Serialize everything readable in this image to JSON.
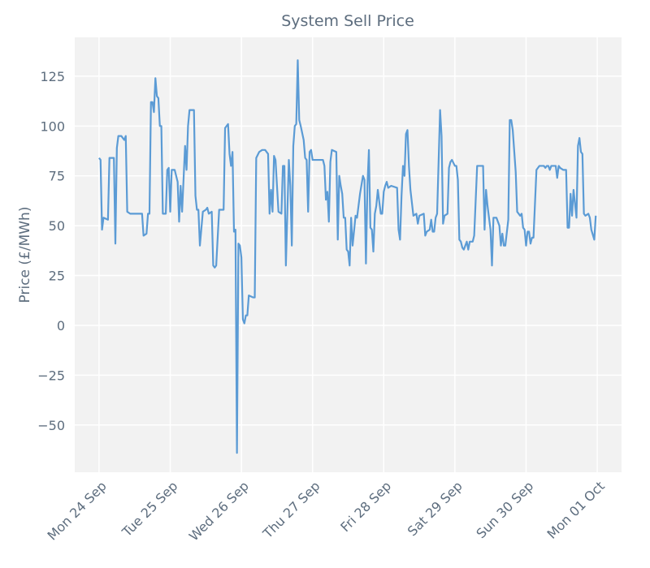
{
  "chart_data": {
    "type": "line",
    "title": "System Sell Price",
    "y_label": "Price (£/MWh)",
    "color": "#5b9bd5",
    "grid": true,
    "xlim": [
      -8.2,
      176.2
    ],
    "xticks": [
      {
        "value": 0,
        "label": "Mon 24 Sep"
      },
      {
        "value": 24,
        "label": "Tue 25 Sep"
      },
      {
        "value": 48,
        "label": "Wed 26 Sep"
      },
      {
        "value": 72,
        "label": "Thu 27 Sep"
      },
      {
        "value": 96,
        "label": "Fri 28 Sep"
      },
      {
        "value": 120,
        "label": "Sat 29 Sep"
      },
      {
        "value": 144,
        "label": "Sun 30 Sep"
      },
      {
        "value": 168,
        "label": "Mon 01 Oct"
      }
    ],
    "ylim": [
      -73.7,
      144.5
    ],
    "yticks": [
      {
        "value": -50,
        "label": "−50"
      },
      {
        "value": -25,
        "label": "−25"
      },
      0,
      25,
      50,
      75,
      100,
      125
    ],
    "x": [
      0,
      0.5,
      1,
      1.5,
      3,
      3.5,
      5,
      5.5,
      6,
      6.5,
      7.5,
      8.5,
      9,
      9.5,
      10.5,
      14.5,
      15,
      16,
      16.5,
      17,
      17.5,
      18,
      18.5,
      19,
      19.5,
      20,
      20.5,
      21,
      21.5,
      22.5,
      23,
      23.5,
      24,
      24.5,
      25.5,
      26.5,
      27,
      27.5,
      28,
      29,
      29.5,
      30,
      30.5,
      32,
      32.5,
      33,
      33.5,
      34,
      35,
      36,
      36.5,
      37,
      38,
      38.5,
      39,
      39.5,
      40.5,
      42,
      42.5,
      43.5,
      44,
      44.5,
      45,
      45.5,
      46,
      46.5,
      47,
      47.5,
      48,
      48.5,
      49,
      49.5,
      50,
      50.5,
      52,
      52.5,
      53,
      54,
      55,
      56,
      57,
      57.5,
      58,
      58.5,
      59,
      59.5,
      60.5,
      61.5,
      62,
      62.5,
      63,
      63.5,
      64,
      64.5,
      65,
      65.5,
      66,
      66.5,
      67,
      67.5,
      68,
      69,
      69.5,
      70,
      70.5,
      71,
      71.5,
      72,
      75.5,
      76,
      76.5,
      77,
      77.5,
      78,
      78.5,
      80,
      80.5,
      81,
      81.5,
      82,
      82.5,
      83,
      83.5,
      84,
      84.5,
      85,
      85.5,
      86.5,
      87,
      87.5,
      88,
      89,
      89.5,
      90,
      90.5,
      91,
      91.5,
      92,
      92.5,
      93,
      93.5,
      94,
      95,
      95.5,
      96,
      96.5,
      97,
      97.5,
      98.5,
      100.5,
      101,
      101.5,
      102,
      102.5,
      103,
      103.5,
      104,
      104.5,
      105,
      106,
      107,
      107.5,
      108,
      109.5,
      110,
      110.5,
      111.5,
      112,
      112.5,
      113,
      113.5,
      114,
      115,
      115.5,
      116,
      116.5,
      117.5,
      118,
      118.5,
      119,
      120,
      120.5,
      121,
      121.5,
      122,
      122.5,
      123,
      124,
      124.5,
      125,
      126,
      126.5,
      127.5,
      129.5,
      130,
      130.5,
      131,
      132,
      132.5,
      133,
      134,
      135,
      135.5,
      136,
      136.5,
      137,
      138,
      138.5,
      139,
      139.5,
      140.5,
      141,
      142,
      142.5,
      143,
      143.5,
      144,
      144.5,
      145,
      145.5,
      146,
      146.5,
      147.5,
      148,
      148.5,
      150,
      150.5,
      151,
      151.5,
      152,
      152.5,
      154,
      154.5,
      155,
      155.5,
      156.5,
      157.5,
      158,
      158.5,
      159,
      159.5,
      160,
      161,
      161.5,
      162,
      162.5,
      163,
      163.5,
      164,
      165,
      165.5,
      166,
      167,
      167.5
    ],
    "values": [
      84,
      83,
      48,
      54,
      53,
      84,
      84,
      41,
      89,
      95,
      95,
      93,
      95,
      57,
      56,
      56,
      45,
      46,
      56,
      56,
      112,
      112,
      107,
      124,
      115,
      114,
      100,
      100,
      56,
      56,
      78,
      79,
      57,
      78,
      78,
      72,
      52,
      70,
      57,
      90,
      78,
      100,
      108,
      108,
      65,
      58,
      58,
      40,
      57,
      58,
      59,
      56,
      57,
      30,
      29,
      30,
      58,
      58,
      99,
      101,
      86,
      80,
      87,
      47,
      48,
      -64,
      41,
      40,
      34,
      3,
      1,
      5,
      5,
      15,
      14,
      14,
      84,
      87,
      88,
      88,
      86,
      56,
      68,
      57,
      85,
      83,
      57,
      56,
      80,
      80,
      30,
      57,
      83,
      70,
      40,
      90,
      100,
      101,
      133,
      103,
      100,
      93,
      84,
      83,
      57,
      87,
      88,
      83,
      83,
      80,
      63,
      67,
      52,
      82,
      88,
      87,
      43,
      75,
      70,
      66,
      54,
      54,
      38,
      37,
      30,
      54,
      40,
      55,
      54,
      60,
      66,
      75,
      73,
      31,
      70,
      88,
      49,
      48,
      37,
      56,
      60,
      68,
      56,
      56,
      67,
      70,
      72,
      69,
      70,
      69,
      48,
      43,
      65,
      80,
      75,
      96,
      98,
      80,
      68,
      55,
      56,
      51,
      55,
      56,
      45,
      47,
      48,
      53,
      47,
      47,
      54,
      56,
      108,
      95,
      51,
      55,
      56,
      79,
      82,
      83,
      80,
      80,
      73,
      43,
      42,
      39,
      38,
      42,
      38,
      42,
      42,
      45,
      80,
      80,
      48,
      68,
      60,
      48,
      30,
      54,
      54,
      50,
      40,
      46,
      40,
      40,
      53,
      103,
      103,
      98,
      77,
      57,
      55,
      56,
      49,
      48,
      40,
      47,
      47,
      41,
      44,
      44,
      78,
      79,
      80,
      80,
      79,
      80,
      80,
      78,
      80,
      80,
      74,
      80,
      79,
      78,
      78,
      49,
      49,
      66,
      55,
      68,
      54,
      90,
      94,
      87,
      86,
      56,
      55,
      56,
      54,
      48,
      43,
      55
    ]
  }
}
